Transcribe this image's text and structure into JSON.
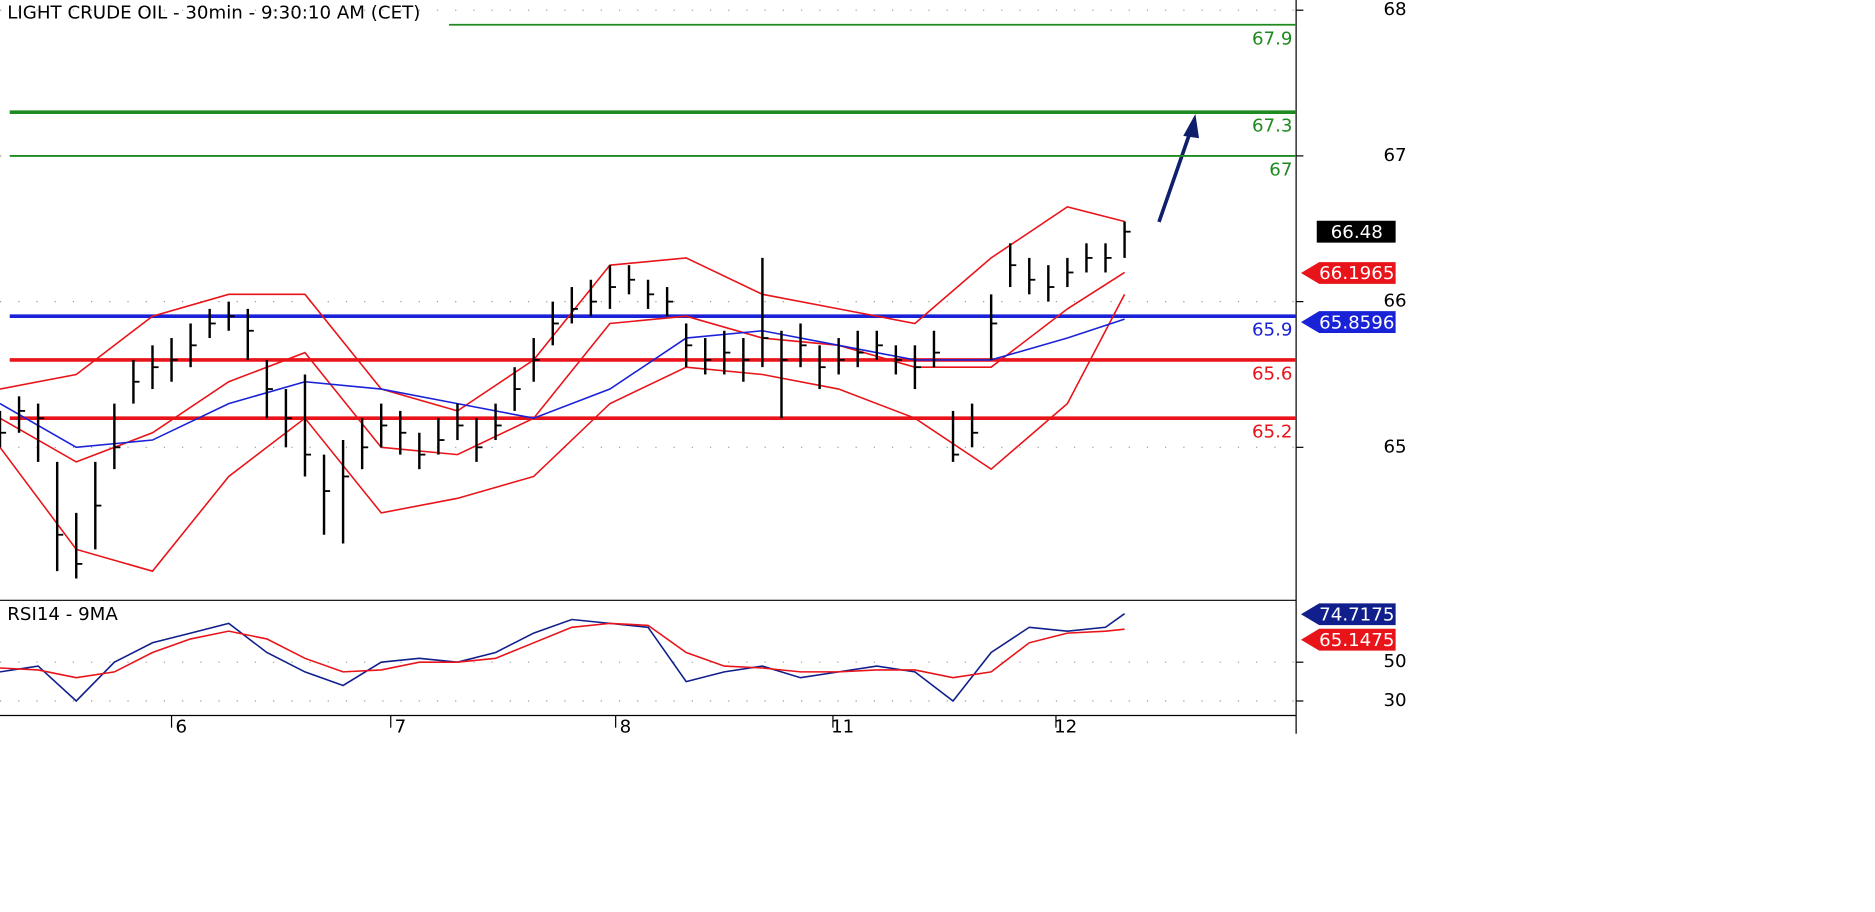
{
  "chart_data": [
    {
      "type": "ohlc",
      "title": "LIGHT CRUDE OIL - 30min - 9:30:10 AM (CET)",
      "xlim": [
        0,
        68
      ],
      "ylim": [
        63.95,
        68.07
      ],
      "yticks": [
        65,
        66,
        67,
        68
      ],
      "x": [
        0,
        1,
        2,
        3,
        4,
        5,
        6,
        7,
        8,
        9,
        10,
        11,
        12,
        13,
        14,
        15,
        16,
        17,
        18,
        19,
        20,
        21,
        22,
        23,
        24,
        25,
        26,
        27,
        28,
        29,
        30,
        31,
        32,
        33,
        34,
        35,
        36,
        37,
        38,
        39,
        40,
        41,
        42,
        43,
        44,
        45,
        46,
        47,
        48,
        49,
        50,
        51,
        52,
        53,
        54,
        55,
        56,
        57,
        58,
        59
      ],
      "high": [
        65.25,
        65.35,
        65.3,
        64.9,
        64.55,
        64.9,
        65.3,
        65.6,
        65.7,
        65.75,
        65.85,
        65.95,
        66.0,
        65.95,
        65.6,
        65.4,
        65.5,
        64.95,
        65.05,
        65.2,
        65.3,
        65.25,
        65.1,
        65.2,
        65.3,
        65.2,
        65.3,
        65.55,
        65.75,
        66.0,
        66.1,
        66.15,
        66.25,
        66.25,
        66.15,
        66.1,
        65.85,
        65.75,
        65.8,
        65.75,
        66.3,
        65.8,
        65.85,
        65.7,
        65.75,
        65.8,
        65.8,
        65.7,
        65.7,
        65.8,
        65.25,
        65.3,
        66.05,
        66.4,
        66.3,
        66.25,
        66.3,
        66.4,
        66.4,
        66.55
      ],
      "low": [
        65.0,
        65.1,
        64.9,
        64.15,
        64.1,
        64.3,
        64.85,
        65.3,
        65.4,
        65.45,
        65.55,
        65.75,
        65.8,
        65.6,
        65.2,
        65.0,
        64.8,
        64.4,
        64.34,
        64.85,
        65.0,
        64.95,
        64.85,
        64.95,
        65.05,
        64.9,
        65.05,
        65.25,
        65.45,
        65.7,
        65.85,
        65.9,
        65.95,
        66.05,
        65.95,
        65.9,
        65.55,
        65.5,
        65.5,
        65.45,
        65.55,
        65.2,
        65.55,
        65.4,
        65.5,
        65.55,
        65.6,
        65.5,
        65.4,
        65.55,
        64.9,
        65.0,
        65.6,
        66.1,
        66.05,
        66.0,
        66.1,
        66.2,
        66.2,
        66.3
      ],
      "close": [
        65.1,
        65.25,
        65.2,
        64.4,
        64.2,
        64.6,
        65.0,
        65.45,
        65.55,
        65.6,
        65.7,
        65.85,
        65.9,
        65.8,
        65.4,
        65.2,
        64.95,
        64.7,
        64.8,
        65.0,
        65.15,
        65.1,
        64.95,
        65.05,
        65.15,
        65.0,
        65.15,
        65.4,
        65.6,
        65.85,
        65.95,
        66.0,
        66.1,
        66.15,
        66.05,
        66.0,
        65.7,
        65.6,
        65.65,
        65.6,
        65.75,
        65.6,
        65.7,
        65.55,
        65.6,
        65.65,
        65.7,
        65.6,
        65.55,
        65.65,
        64.95,
        65.1,
        65.85,
        66.25,
        66.15,
        66.1,
        66.2,
        66.3,
        66.3,
        66.48
      ],
      "series": [
        {
          "x": [
            0,
            4,
            8,
            12,
            16,
            20,
            24,
            28,
            32,
            36,
            40,
            44,
            48,
            52,
            56,
            59
          ],
          "values": [
            65.4,
            65.5,
            65.9,
            66.05,
            66.05,
            65.4,
            65.25,
            65.6,
            66.25,
            66.3,
            66.05,
            65.95,
            65.85,
            66.3,
            66.65,
            66.55
          ],
          "color": "#e8141a"
        },
        {
          "x": [
            0,
            4,
            8,
            12,
            16,
            20,
            24,
            28,
            32,
            36,
            40,
            44,
            48,
            52,
            56,
            59
          ],
          "values": [
            65.0,
            64.3,
            64.15,
            64.8,
            65.2,
            64.55,
            64.65,
            64.8,
            65.3,
            65.55,
            65.5,
            65.4,
            65.2,
            64.85,
            65.3,
            66.05
          ],
          "color": "#e8141a"
        },
        {
          "x": [
            0,
            4,
            8,
            12,
            16,
            20,
            24,
            28,
            32,
            36,
            40,
            44,
            48,
            52,
            56,
            59
          ],
          "values": [
            65.2,
            64.9,
            65.1,
            65.45,
            65.65,
            65.0,
            64.95,
            65.2,
            65.85,
            65.9,
            65.75,
            65.7,
            65.55,
            65.55,
            65.95,
            66.2
          ],
          "color": "#e8141a"
        },
        {
          "x": [
            0,
            4,
            8,
            12,
            16,
            20,
            24,
            28,
            32,
            36,
            40,
            44,
            48,
            52,
            56,
            59
          ],
          "values": [
            65.3,
            65.0,
            65.05,
            65.3,
            65.45,
            65.4,
            65.3,
            65.2,
            65.4,
            65.75,
            65.8,
            65.7,
            65.6,
            65.6,
            65.75,
            65.88
          ],
          "color": "#1a22d8"
        }
      ],
      "levels": [
        {
          "value": 67.9,
          "color": "#1f8a1f"
        },
        {
          "value": 67.3,
          "color": "#1f8a1f"
        },
        {
          "value": 67,
          "color": "#1f8a1f"
        },
        {
          "value": 65.9,
          "color": "#1a22d8"
        },
        {
          "value": 65.6,
          "color": "#e8141a"
        },
        {
          "value": 65.2,
          "color": "#e8141a"
        }
      ],
      "price_tags": [
        {
          "value": 66.48,
          "color": "#000000"
        },
        {
          "value": 66.1965,
          "color": "#e8141a"
        },
        {
          "value": 65.8596,
          "color": "#1a22d8"
        }
      ]
    },
    {
      "type": "line",
      "title": "RSI14 - 9MA",
      "xlim": [
        0,
        68
      ],
      "ylim": [
        22.5,
        81.9
      ],
      "yticks": [
        30,
        50
      ],
      "xticks": [
        {
          "value": 9,
          "label": "6"
        },
        {
          "value": 20.5,
          "label": "7"
        },
        {
          "value": 32.3,
          "label": "8"
        },
        {
          "value": 43.7,
          "label": "11"
        },
        {
          "value": 55.4,
          "label": "12"
        }
      ],
      "series": [
        {
          "x": [
            0,
            2,
            4,
            6,
            8,
            10,
            12,
            14,
            16,
            18,
            20,
            22,
            24,
            26,
            28,
            30,
            32,
            34,
            36,
            38,
            40,
            42,
            44,
            46,
            48,
            50,
            52,
            54,
            56,
            58,
            59
          ],
          "values": [
            45,
            48,
            30,
            50,
            60,
            65,
            70,
            55,
            45,
            38,
            50,
            52,
            50,
            55,
            65,
            72,
            70,
            68,
            40,
            45,
            48,
            42,
            45,
            48,
            45,
            30,
            55,
            68,
            66,
            68,
            75
          ],
          "color": "#101f8c"
        },
        {
          "x": [
            0,
            2,
            4,
            6,
            8,
            10,
            12,
            14,
            16,
            18,
            20,
            22,
            24,
            26,
            28,
            30,
            32,
            34,
            36,
            38,
            40,
            42,
            44,
            46,
            48,
            50,
            52,
            54,
            56,
            58,
            59
          ],
          "values": [
            47,
            46,
            42,
            45,
            55,
            62,
            66,
            62,
            52,
            45,
            46,
            50,
            50,
            52,
            60,
            68,
            70,
            69,
            55,
            48,
            47,
            45,
            45,
            46,
            46,
            42,
            45,
            60,
            65,
            66,
            67
          ],
          "color": "#e8141a"
        }
      ],
      "price_tags": [
        {
          "value": 74.7175,
          "color": "#101f8c"
        },
        {
          "value": 65.1475,
          "color": "#e8141a"
        }
      ]
    }
  ]
}
